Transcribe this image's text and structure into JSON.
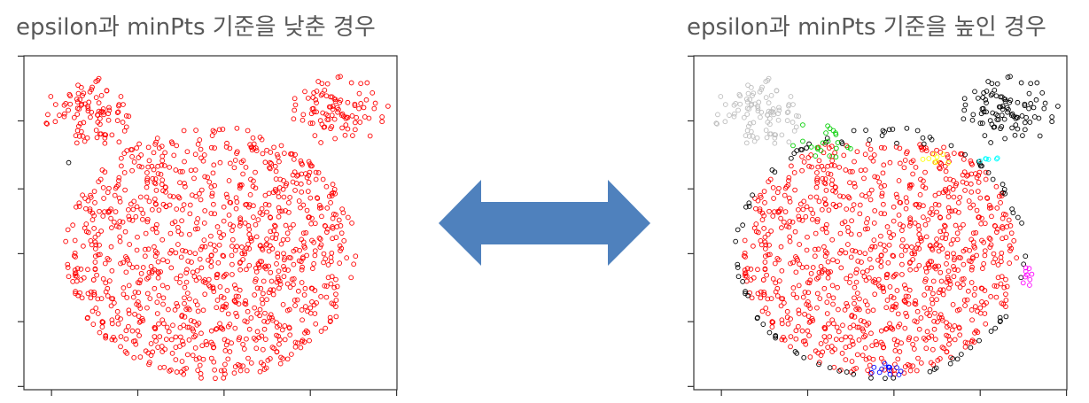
{
  "panels": [
    {
      "title": "epsilon과 minPts 기준을 낮춘 경우"
    },
    {
      "title": "epsilon과 minPts 기준을 높인 경우"
    }
  ],
  "arrow": {
    "color": "#4F81BD",
    "direction": "bidirectional"
  },
  "chart_data": [
    {
      "type": "scatter",
      "title": "epsilon과 minPts 기준을 낮춘 경우",
      "xlabel": "",
      "ylabel": "",
      "xlim": [
        0,
        10
      ],
      "ylim": [
        0,
        10
      ],
      "grid": false,
      "marker": "open-circle",
      "series": [
        {
          "color": "#FF0000",
          "points": []
        },
        {
          "color": "#000000",
          "points": [
            [
              1.2,
              6.8
            ]
          ]
        }
      ]
    },
    {
      "type": "scatter",
      "title": "epsilon과 minPts 기준을 높인 경우",
      "xlabel": "",
      "ylabel": "",
      "xlim": [
        0,
        10
      ],
      "ylim": [
        0,
        10
      ],
      "grid": false,
      "marker": "open-circle",
      "series": [
        {
          "color": "#FF0000",
          "points": []
        },
        {
          "color": "#BEBEBE",
          "points": []
        },
        {
          "color": "#000000",
          "points": []
        },
        {
          "color": "#00CD00",
          "points": []
        },
        {
          "color": "#FFFF00",
          "points": []
        },
        {
          "color": "#00FFFF",
          "points": []
        },
        {
          "color": "#FF00FF",
          "points": []
        },
        {
          "color": "#0000FF",
          "points": []
        }
      ]
    }
  ]
}
